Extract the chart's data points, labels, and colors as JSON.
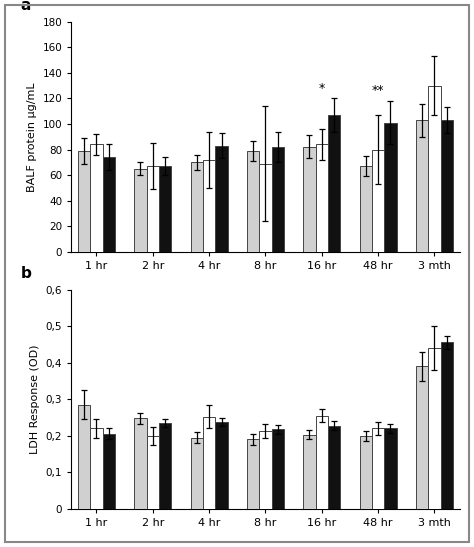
{
  "panel_a": {
    "title": "a",
    "ylabel": "BALF protein μg/mL",
    "ylim": [
      0,
      180
    ],
    "yticks": [
      0,
      20,
      40,
      60,
      80,
      100,
      120,
      140,
      160,
      180
    ],
    "categories": [
      "1 hr",
      "2 hr",
      "4 hr",
      "8 hr",
      "16 hr",
      "48 hr",
      "3 mth"
    ],
    "bar_light": [
      79,
      65,
      70,
      79,
      82,
      67,
      103
    ],
    "bar_white": [
      84,
      67,
      72,
      69,
      84,
      80,
      130
    ],
    "bar_dark": [
      74,
      67,
      83,
      82,
      107,
      101,
      103
    ],
    "err_light": [
      10,
      5,
      6,
      8,
      9,
      8,
      13
    ],
    "err_white": [
      8,
      18,
      22,
      45,
      12,
      27,
      23
    ],
    "err_dark": [
      10,
      7,
      10,
      12,
      13,
      17,
      10
    ],
    "annotations": [
      {
        "x": 4,
        "text": "*"
      },
      {
        "x": 5,
        "text": "**"
      }
    ]
  },
  "panel_b": {
    "title": "b",
    "ylabel": "LDH Response (OD)",
    "ylim": [
      0,
      0.6
    ],
    "yticks": [
      0,
      0.1,
      0.2,
      0.3,
      0.4,
      0.5,
      0.6
    ],
    "ytick_labels": [
      "0",
      "0,1",
      "0,2",
      "0,3",
      "0,4",
      "0,5",
      "0,6"
    ],
    "categories": [
      "1 hr",
      "2 hr",
      "4 hr",
      "8 hr",
      "16 hr",
      "48 hr",
      "3 mth"
    ],
    "bar_light": [
      0.285,
      0.248,
      0.195,
      0.19,
      0.203,
      0.2,
      0.39
    ],
    "bar_white": [
      0.22,
      0.2,
      0.252,
      0.213,
      0.255,
      0.22,
      0.44
    ],
    "bar_dark": [
      0.205,
      0.235,
      0.238,
      0.218,
      0.228,
      0.22,
      0.456
    ],
    "err_light": [
      0.04,
      0.015,
      0.015,
      0.015,
      0.012,
      0.013,
      0.04
    ],
    "err_white": [
      0.025,
      0.025,
      0.032,
      0.02,
      0.018,
      0.018,
      0.06
    ],
    "err_dark": [
      0.015,
      0.012,
      0.012,
      0.012,
      0.012,
      0.012,
      0.018
    ]
  },
  "colors": {
    "light": "#d0d0d0",
    "white": "#ffffff",
    "dark": "#111111"
  },
  "bar_width": 0.22,
  "edge_color": "#444444",
  "figure_bg": "#ffffff"
}
